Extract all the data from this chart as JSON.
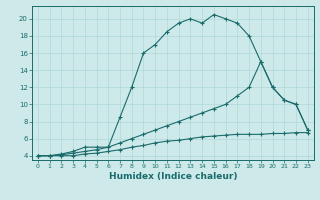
{
  "xlabel": "Humidex (Indice chaleur)",
  "background_color": "#cde9e9",
  "line_color": "#1a6b6b",
  "xlim": [
    -0.5,
    23.5
  ],
  "ylim": [
    3.5,
    21.5
  ],
  "yticks": [
    4,
    6,
    8,
    10,
    12,
    14,
    16,
    18,
    20
  ],
  "xticks": [
    0,
    1,
    2,
    3,
    4,
    5,
    6,
    7,
    8,
    9,
    10,
    11,
    12,
    13,
    14,
    15,
    16,
    17,
    18,
    19,
    20,
    21,
    22,
    23
  ],
  "series": [
    {
      "x": [
        0,
        1,
        2,
        3,
        4,
        5,
        6,
        7,
        8,
        9,
        10,
        11,
        12,
        13,
        14,
        15,
        16,
        17,
        18,
        19,
        20,
        21,
        22,
        23
      ],
      "y": [
        4,
        4,
        4,
        4,
        4.2,
        4.3,
        4.5,
        4.7,
        5.0,
        5.2,
        5.5,
        5.7,
        5.8,
        6.0,
        6.2,
        6.3,
        6.4,
        6.5,
        6.5,
        6.5,
        6.6,
        6.6,
        6.7,
        6.7
      ]
    },
    {
      "x": [
        0,
        1,
        2,
        3,
        4,
        5,
        6,
        7,
        8,
        9,
        10,
        11,
        12,
        13,
        14,
        15,
        16,
        17,
        18,
        19,
        20,
        21,
        22,
        23
      ],
      "y": [
        4,
        4,
        4.1,
        4.3,
        4.5,
        4.7,
        5.0,
        5.5,
        6.0,
        6.5,
        7.0,
        7.5,
        8.0,
        8.5,
        9.0,
        9.5,
        10.0,
        11.0,
        12.0,
        15.0,
        12.0,
        10.5,
        10.0,
        7.0
      ]
    },
    {
      "x": [
        0,
        1,
        2,
        3,
        4,
        5,
        6,
        7,
        8,
        9,
        10,
        11,
        12,
        13,
        14,
        15,
        16,
        17,
        18,
        19,
        20,
        21,
        22,
        23
      ],
      "y": [
        4,
        4,
        4.2,
        4.5,
        5.0,
        5.0,
        5.0,
        8.5,
        12.0,
        16.0,
        17.0,
        18.5,
        19.5,
        20.0,
        19.5,
        20.5,
        20.0,
        19.5,
        18.0,
        15.0,
        12.0,
        10.5,
        10.0,
        7.0
      ]
    }
  ]
}
